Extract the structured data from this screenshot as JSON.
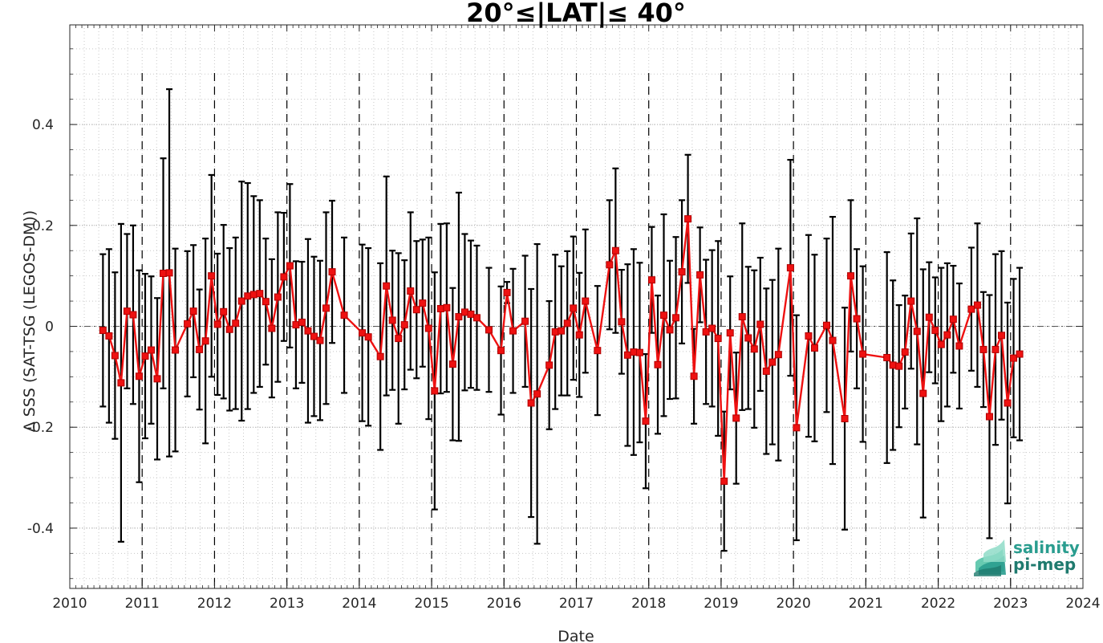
{
  "chart_data": {
    "type": "line",
    "title": "20°≤|LAT|≤ 40°",
    "xlabel": "Date",
    "ylabel": "Δ SSS (SAT-TSG (LEGOS-DM))",
    "xlim": [
      "2010-01-01",
      "2024-01-01"
    ],
    "ylim": [
      -0.52,
      0.58
    ],
    "x_tick_labels": [
      "2010",
      "2011",
      "2012",
      "2013",
      "2014",
      "2015",
      "2016",
      "2017",
      "2018",
      "2019",
      "2020",
      "2021",
      "2022",
      "2023",
      "2024"
    ],
    "y_tick_values": [
      -0.4,
      -0.2,
      0,
      0.2,
      0.4
    ],
    "y_tick_labels": [
      "-0.4",
      "-0.2",
      "0",
      "0.2",
      "0.4"
    ],
    "grid": true,
    "year_boundary_lines": "dashed vertical line at each year start",
    "zero_line": "dash-dot horizontal line at 0",
    "colors": {
      "mean_line": "#ee1111",
      "marker_fill": "#ee1111",
      "error_bar": "#000000",
      "grid": "#c8c8c8"
    },
    "series": [
      {
        "marker": "square",
        "points": [
          {
            "x": "2010-06",
            "y": -0.008,
            "err": 0.151
          },
          {
            "x": "2010-07",
            "y": -0.019,
            "err": 0.172
          },
          {
            "x": "2010-08",
            "y": -0.058,
            "err": 0.165
          },
          {
            "x": "2010-09",
            "y": -0.112,
            "err": 0.315
          },
          {
            "x": "2010-10",
            "y": 0.03,
            "err": 0.153
          },
          {
            "x": "2010-11",
            "y": 0.023,
            "err": 0.177
          },
          {
            "x": "2010-12",
            "y": -0.099,
            "err": 0.21
          },
          {
            "x": "2011-01",
            "y": -0.059,
            "err": 0.163
          },
          {
            "x": "2011-02",
            "y": -0.047,
            "err": 0.146
          },
          {
            "x": "2011-03",
            "y": -0.104,
            "err": 0.16
          },
          {
            "x": "2011-04",
            "y": 0.105,
            "err": 0.228
          },
          {
            "x": "2011-05",
            "y": 0.106,
            "err": 0.364
          },
          {
            "x": "2011-06",
            "y": -0.047,
            "err": 0.201
          },
          {
            "x": "2011-08",
            "y": 0.005,
            "err": 0.144
          },
          {
            "x": "2011-09",
            "y": 0.03,
            "err": 0.131
          },
          {
            "x": "2011-10",
            "y": -0.046,
            "err": 0.119
          },
          {
            "x": "2011-11",
            "y": -0.029,
            "err": 0.203
          },
          {
            "x": "2011-12",
            "y": 0.1,
            "err": 0.2
          },
          {
            "x": "2012-01",
            "y": 0.004,
            "err": 0.14
          },
          {
            "x": "2012-02",
            "y": 0.029,
            "err": 0.172
          },
          {
            "x": "2012-03",
            "y": -0.006,
            "err": 0.161
          },
          {
            "x": "2012-04",
            "y": 0.006,
            "err": 0.17
          },
          {
            "x": "2012-05",
            "y": 0.05,
            "err": 0.237
          },
          {
            "x": "2012-06",
            "y": 0.06,
            "err": 0.224
          },
          {
            "x": "2012-07",
            "y": 0.063,
            "err": 0.195
          },
          {
            "x": "2012-08",
            "y": 0.065,
            "err": 0.185
          },
          {
            "x": "2012-09",
            "y": 0.049,
            "err": 0.125
          },
          {
            "x": "2012-10",
            "y": -0.004,
            "err": 0.137
          },
          {
            "x": "2012-11",
            "y": 0.058,
            "err": 0.168
          },
          {
            "x": "2012-12",
            "y": 0.098,
            "err": 0.127
          },
          {
            "x": "2013-01",
            "y": 0.12,
            "err": 0.162
          },
          {
            "x": "2013-02",
            "y": 0.003,
            "err": 0.126
          },
          {
            "x": "2013-03",
            "y": 0.008,
            "err": 0.12
          },
          {
            "x": "2013-04",
            "y": -0.009,
            "err": 0.182
          },
          {
            "x": "2013-05",
            "y": -0.02,
            "err": 0.158
          },
          {
            "x": "2013-06",
            "y": -0.028,
            "err": 0.158
          },
          {
            "x": "2013-07",
            "y": 0.036,
            "err": 0.19
          },
          {
            "x": "2013-08",
            "y": 0.108,
            "err": 0.141
          },
          {
            "x": "2013-10",
            "y": 0.022,
            "err": 0.154
          },
          {
            "x": "2014-01",
            "y": -0.013,
            "err": 0.175
          },
          {
            "x": "2014-02",
            "y": -0.021,
            "err": 0.176
          },
          {
            "x": "2014-04",
            "y": -0.06,
            "err": 0.185
          },
          {
            "x": "2014-05",
            "y": 0.08,
            "err": 0.217
          },
          {
            "x": "2014-06",
            "y": 0.012,
            "err": 0.138
          },
          {
            "x": "2014-07",
            "y": -0.024,
            "err": 0.169
          },
          {
            "x": "2014-08",
            "y": 0.003,
            "err": 0.128
          },
          {
            "x": "2014-09",
            "y": 0.07,
            "err": 0.156
          },
          {
            "x": "2014-10",
            "y": 0.033,
            "err": 0.136
          },
          {
            "x": "2014-11",
            "y": 0.046,
            "err": 0.126
          },
          {
            "x": "2014-12",
            "y": -0.004,
            "err": 0.18
          },
          {
            "x": "2015-01",
            "y": -0.128,
            "err": 0.235
          },
          {
            "x": "2015-02",
            "y": 0.035,
            "err": 0.168
          },
          {
            "x": "2015-03",
            "y": 0.037,
            "err": 0.167
          },
          {
            "x": "2015-04",
            "y": -0.075,
            "err": 0.151
          },
          {
            "x": "2015-05",
            "y": 0.019,
            "err": 0.246
          },
          {
            "x": "2015-06",
            "y": 0.028,
            "err": 0.155
          },
          {
            "x": "2015-07",
            "y": 0.024,
            "err": 0.146
          },
          {
            "x": "2015-08",
            "y": 0.017,
            "err": 0.143
          },
          {
            "x": "2015-10",
            "y": -0.007,
            "err": 0.123
          },
          {
            "x": "2015-12",
            "y": -0.048,
            "err": 0.127
          },
          {
            "x": "2016-01",
            "y": 0.067,
            "err": 0.021
          },
          {
            "x": "2016-02",
            "y": -0.009,
            "err": 0.123
          },
          {
            "x": "2016-04",
            "y": 0.01,
            "err": 0.13
          },
          {
            "x": "2016-05",
            "y": -0.152,
            "err": 0.226
          },
          {
            "x": "2016-06",
            "y": -0.134,
            "err": 0.297
          },
          {
            "x": "2016-08",
            "y": -0.077,
            "err": 0.127
          },
          {
            "x": "2016-09",
            "y": -0.011,
            "err": 0.153
          },
          {
            "x": "2016-10",
            "y": -0.009,
            "err": 0.128
          },
          {
            "x": "2016-11",
            "y": 0.006,
            "err": 0.143
          },
          {
            "x": "2016-12",
            "y": 0.036,
            "err": 0.142
          },
          {
            "x": "2017-01",
            "y": -0.017,
            "err": 0.123
          },
          {
            "x": "2017-02",
            "y": 0.05,
            "err": 0.142
          },
          {
            "x": "2017-04",
            "y": -0.048,
            "err": 0.128
          },
          {
            "x": "2017-06",
            "y": 0.122,
            "err": 0.128
          },
          {
            "x": "2017-07",
            "y": 0.15,
            "err": 0.163
          },
          {
            "x": "2017-08",
            "y": 0.009,
            "err": 0.103
          },
          {
            "x": "2017-09",
            "y": -0.057,
            "err": 0.18
          },
          {
            "x": "2017-10",
            "y": -0.051,
            "err": 0.204
          },
          {
            "x": "2017-11",
            "y": -0.052,
            "err": 0.178
          },
          {
            "x": "2017-12",
            "y": -0.188,
            "err": 0.133
          },
          {
            "x": "2018-01",
            "y": 0.092,
            "err": 0.105
          },
          {
            "x": "2018-02",
            "y": -0.076,
            "err": 0.137
          },
          {
            "x": "2018-03",
            "y": 0.022,
            "err": 0.2
          },
          {
            "x": "2018-04",
            "y": -0.007,
            "err": 0.137
          },
          {
            "x": "2018-05",
            "y": 0.017,
            "err": 0.16
          },
          {
            "x": "2018-06",
            "y": 0.108,
            "err": 0.142
          },
          {
            "x": "2018-07",
            "y": 0.213,
            "err": 0.127
          },
          {
            "x": "2018-08",
            "y": -0.099,
            "err": 0.094
          },
          {
            "x": "2018-09",
            "y": 0.102,
            "err": 0.094
          },
          {
            "x": "2018-10",
            "y": -0.011,
            "err": 0.143
          },
          {
            "x": "2018-11",
            "y": -0.004,
            "err": 0.155
          },
          {
            "x": "2018-12",
            "y": -0.024,
            "err": 0.193
          },
          {
            "x": "2019-01",
            "y": -0.307,
            "err": 0.138
          },
          {
            "x": "2019-02",
            "y": -0.013,
            "err": 0.112
          },
          {
            "x": "2019-03",
            "y": -0.182,
            "err": 0.13
          },
          {
            "x": "2019-04",
            "y": 0.019,
            "err": 0.185
          },
          {
            "x": "2019-05",
            "y": -0.023,
            "err": 0.141
          },
          {
            "x": "2019-06",
            "y": -0.045,
            "err": 0.156
          },
          {
            "x": "2019-07",
            "y": 0.004,
            "err": 0.132
          },
          {
            "x": "2019-08",
            "y": -0.089,
            "err": 0.164
          },
          {
            "x": "2019-09",
            "y": -0.071,
            "err": 0.163
          },
          {
            "x": "2019-10",
            "y": -0.056,
            "err": 0.21
          },
          {
            "x": "2019-12",
            "y": 0.116,
            "err": 0.214
          },
          {
            "x": "2020-01",
            "y": -0.201,
            "err": 0.223
          },
          {
            "x": "2020-03",
            "y": -0.019,
            "err": 0.2
          },
          {
            "x": "2020-04",
            "y": -0.043,
            "err": 0.185
          },
          {
            "x": "2020-06",
            "y": 0.002,
            "err": 0.172
          },
          {
            "x": "2020-07",
            "y": -0.028,
            "err": 0.245
          },
          {
            "x": "2020-09",
            "y": -0.183,
            "err": 0.22
          },
          {
            "x": "2020-10",
            "y": 0.1,
            "err": 0.15
          },
          {
            "x": "2020-11",
            "y": 0.015,
            "err": 0.138
          },
          {
            "x": "2020-12",
            "y": -0.055,
            "err": 0.174
          },
          {
            "x": "2021-04",
            "y": -0.062,
            "err": 0.209
          },
          {
            "x": "2021-05",
            "y": -0.077,
            "err": 0.168
          },
          {
            "x": "2021-06",
            "y": -0.079,
            "err": 0.121
          },
          {
            "x": "2021-07",
            "y": -0.051,
            "err": 0.112
          },
          {
            "x": "2021-08",
            "y": 0.05,
            "err": 0.134
          },
          {
            "x": "2021-09",
            "y": -0.01,
            "err": 0.224
          },
          {
            "x": "2021-10",
            "y": -0.133,
            "err": 0.246
          },
          {
            "x": "2021-11",
            "y": 0.018,
            "err": 0.109
          },
          {
            "x": "2021-12",
            "y": -0.008,
            "err": 0.105
          },
          {
            "x": "2022-01",
            "y": -0.036,
            "err": 0.152
          },
          {
            "x": "2022-02",
            "y": -0.017,
            "err": 0.142
          },
          {
            "x": "2022-03",
            "y": 0.014,
            "err": 0.106
          },
          {
            "x": "2022-04",
            "y": -0.039,
            "err": 0.124
          },
          {
            "x": "2022-06",
            "y": 0.034,
            "err": 0.122
          },
          {
            "x": "2022-07",
            "y": 0.042,
            "err": 0.162
          },
          {
            "x": "2022-08",
            "y": -0.046,
            "err": 0.114
          },
          {
            "x": "2022-09",
            "y": -0.179,
            "err": 0.241
          },
          {
            "x": "2022-10",
            "y": -0.046,
            "err": 0.189
          },
          {
            "x": "2022-11",
            "y": -0.018,
            "err": 0.167
          },
          {
            "x": "2022-12",
            "y": -0.152,
            "err": 0.199
          },
          {
            "x": "2023-01",
            "y": -0.063,
            "err": 0.157
          },
          {
            "x": "2023-02",
            "y": -0.055,
            "err": 0.171
          }
        ]
      }
    ]
  },
  "logo": {
    "line1": "salinity",
    "line2": "pi-mep",
    "colors": [
      "#2a9d8f",
      "#1f7a6e"
    ]
  }
}
